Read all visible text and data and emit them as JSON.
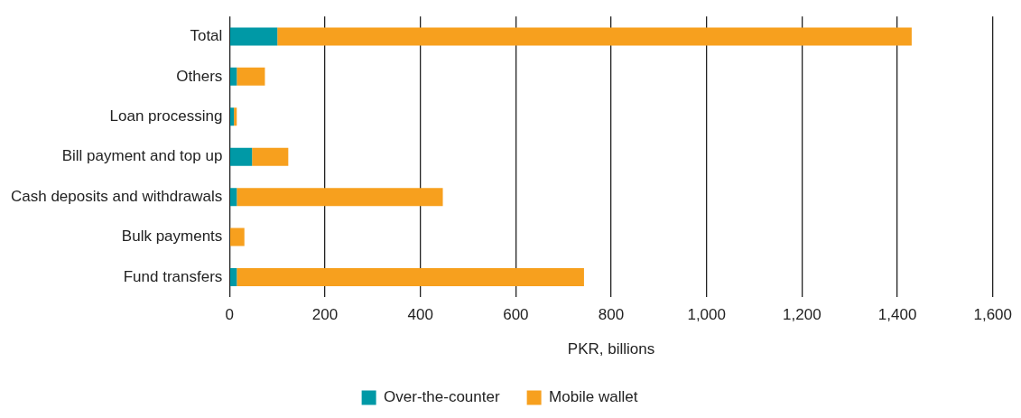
{
  "chart_data": {
    "type": "bar",
    "orientation": "horizontal",
    "stacked": true,
    "categories": [
      "Total",
      "Others",
      "Loan processing",
      "Bill payment and top up",
      "Cash deposits and withdrawals",
      "Bulk payments",
      "Fund transfers"
    ],
    "series": [
      {
        "name": "Over-the-counter",
        "color": "#0099a6",
        "values": [
          100,
          15,
          9,
          47,
          15,
          0,
          15
        ]
      },
      {
        "name": "Mobile wallet",
        "color": "#f7a01e",
        "values": [
          1330,
          59,
          6,
          76,
          432,
          31,
          728
        ]
      }
    ],
    "xlim": [
      0,
      1600
    ],
    "xticks": [
      0,
      200,
      400,
      600,
      800,
      {
        "value": 1000,
        "label": "1,000"
      },
      {
        "value": 1200,
        "label": "1,200"
      },
      {
        "value": 1400,
        "label": "1,400"
      },
      {
        "value": 1600,
        "label": "1,600"
      }
    ],
    "xlabel": "PKR, billions",
    "grid": "x",
    "legend": "bottom"
  }
}
